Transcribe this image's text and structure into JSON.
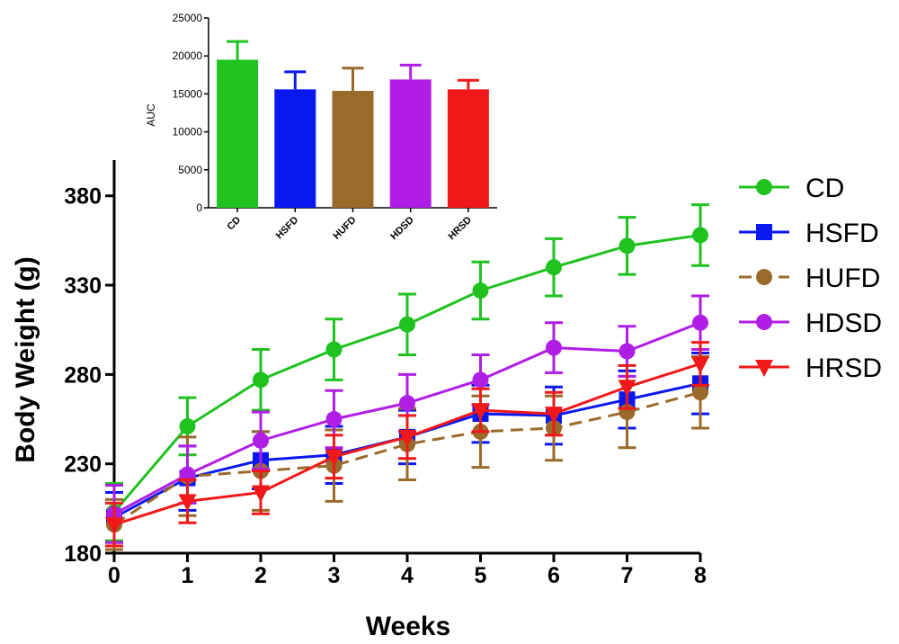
{
  "colors": {
    "CD": "#1fc21f",
    "HSFD": "#0a18f0",
    "HUFD": "#9a6a2a",
    "HDSD": "#b01ee6",
    "HRSD": "#f01818",
    "axis": "#000000"
  },
  "chart_data": [
    {
      "type": "line",
      "title": "",
      "xlabel": "Weeks",
      "ylabel": "Body Weight (g)",
      "x": [
        0,
        1,
        2,
        3,
        4,
        5,
        6,
        7,
        8
      ],
      "xlim": [
        0,
        8
      ],
      "ylim": [
        180,
        400
      ],
      "yticks": [
        180,
        230,
        280,
        330,
        380
      ],
      "xticks": [
        0,
        1,
        2,
        3,
        4,
        5,
        6,
        7,
        8
      ],
      "grid": false,
      "legend": "right",
      "series": [
        {
          "name": "CD",
          "marker": "circle",
          "dashed": false,
          "values": [
            203,
            251,
            277,
            294,
            308,
            327,
            340,
            352,
            358
          ],
          "errors": [
            16,
            16,
            17,
            17,
            17,
            16,
            16,
            16,
            17
          ]
        },
        {
          "name": "HSFD",
          "marker": "square",
          "dashed": false,
          "values": [
            200,
            222,
            232,
            235,
            245,
            258,
            257,
            266,
            275
          ],
          "errors": [
            14,
            18,
            16,
            16,
            15,
            16,
            16,
            16,
            17
          ]
        },
        {
          "name": "HUFD",
          "marker": "circle",
          "dashed": true,
          "values": [
            196,
            223,
            226,
            229,
            241,
            248,
            250,
            259,
            270
          ],
          "errors": [
            14,
            22,
            22,
            20,
            20,
            20,
            18,
            20,
            20
          ]
        },
        {
          "name": "HDSD",
          "marker": "circle",
          "dashed": false,
          "values": [
            202,
            224,
            243,
            255,
            264,
            277,
            295,
            293,
            309
          ],
          "errors": [
            16,
            16,
            16,
            16,
            16,
            14,
            14,
            14,
            15
          ]
        },
        {
          "name": "HRSD",
          "marker": "triangle-down",
          "dashed": false,
          "values": [
            196,
            209,
            214,
            234,
            245,
            260,
            258,
            273,
            286
          ],
          "errors": [
            12,
            12,
            12,
            12,
            12,
            12,
            12,
            12,
            12
          ]
        }
      ]
    },
    {
      "type": "bar",
      "title": "",
      "xlabel": "",
      "ylabel": "AUC",
      "categories": [
        "CD",
        "HSFD",
        "HUFD",
        "HDSD",
        "HRSD"
      ],
      "values": [
        19500,
        15600,
        15400,
        16900,
        15600
      ],
      "errors": [
        2400,
        2300,
        3000,
        1900,
        1200
      ],
      "ylim": [
        0,
        25000
      ],
      "yticks": [
        0,
        5000,
        10000,
        15000,
        20000,
        25000
      ],
      "grid": false
    }
  ]
}
